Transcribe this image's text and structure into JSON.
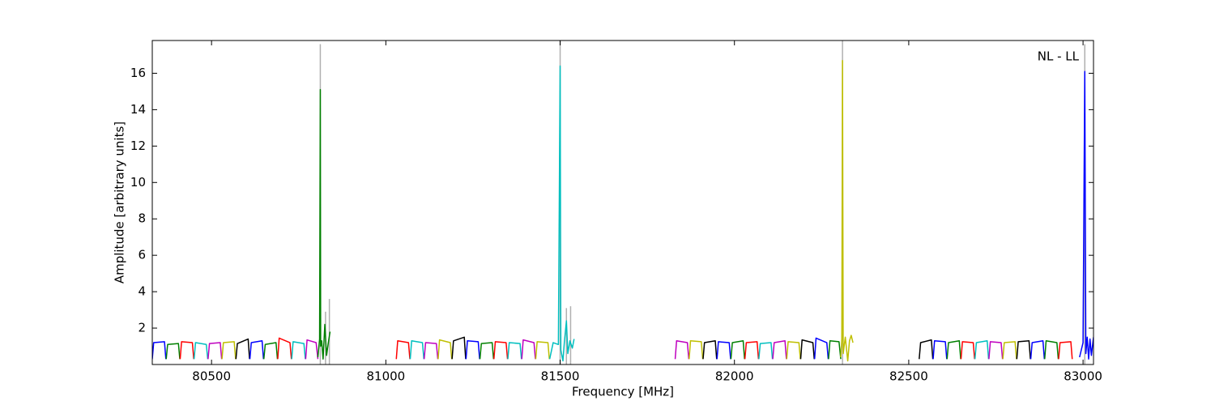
{
  "chart_data": {
    "type": "line",
    "xlabel": "Frequency [MHz]",
    "ylabel": "Amplitude [arbitrary units]",
    "annotation": "NL - LL",
    "xlim": [
      80330,
      83030
    ],
    "ylim": [
      0,
      17.8
    ],
    "xticks": [
      80500,
      81000,
      81500,
      82000,
      82500,
      83000
    ],
    "yticks": [
      2,
      4,
      6,
      8,
      10,
      12,
      14,
      16
    ],
    "series": [
      {
        "color": "#b0b0b0",
        "x": [
          80812,
          80812,
          80812,
          80827,
          80827,
          80827,
          80838,
          80838
        ],
        "values": [
          0,
          17.6,
          null,
          0,
          2.9,
          null,
          0,
          3.6
        ]
      },
      {
        "color": "#b0b0b0",
        "x": [
          81500,
          81500,
          81500,
          81518,
          81518,
          81518,
          81530,
          81530
        ],
        "values": [
          0,
          17.8,
          null,
          0,
          3.1,
          null,
          0,
          3.2
        ]
      },
      {
        "color": "#b0b0b0",
        "x": [
          82310,
          82310
        ],
        "values": [
          0,
          17.8
        ]
      },
      {
        "color": "#b0b0b0",
        "x": [
          83005,
          83005
        ],
        "values": [
          0,
          17.6
        ]
      },
      {
        "color": "#0000ff",
        "x": [
          80330,
          80334,
          80365,
          80369
        ],
        "values": [
          0.3,
          1.2,
          1.25,
          0.3
        ]
      },
      {
        "color": "#008000",
        "x": [
          80370,
          80374,
          80405,
          80409
        ],
        "values": [
          0.3,
          1.1,
          1.15,
          0.3
        ]
      },
      {
        "color": "#ff0000",
        "x": [
          80410,
          80414,
          80445,
          80449
        ],
        "values": [
          0.3,
          1.25,
          1.2,
          0.3
        ]
      },
      {
        "color": "#00bfbf",
        "x": [
          80450,
          80454,
          80485,
          80489
        ],
        "values": [
          0.3,
          1.2,
          1.1,
          0.3
        ]
      },
      {
        "color": "#bf00bf",
        "x": [
          80490,
          80494,
          80525,
          80529
        ],
        "values": [
          0.3,
          1.15,
          1.2,
          0.3
        ]
      },
      {
        "color": "#bfbf00",
        "x": [
          80530,
          80534,
          80565,
          80569
        ],
        "values": [
          0.3,
          1.2,
          1.25,
          0.3
        ]
      },
      {
        "color": "#000000",
        "x": [
          80570,
          80574,
          80605,
          80609
        ],
        "values": [
          0.3,
          1.15,
          1.4,
          0.3
        ]
      },
      {
        "color": "#0000ff",
        "x": [
          80610,
          80614,
          80645,
          80649
        ],
        "values": [
          0.3,
          1.2,
          1.3,
          0.3
        ]
      },
      {
        "color": "#008000",
        "x": [
          80650,
          80654,
          80685,
          80689
        ],
        "values": [
          0.3,
          1.1,
          1.2,
          0.3
        ]
      },
      {
        "color": "#ff0000",
        "x": [
          80690,
          80694,
          80725,
          80729
        ],
        "values": [
          0.3,
          1.45,
          1.2,
          0.3
        ]
      },
      {
        "color": "#00bfbf",
        "x": [
          80730,
          80734,
          80765,
          80769
        ],
        "values": [
          0.3,
          1.25,
          1.15,
          0.3
        ]
      },
      {
        "color": "#bf00bf",
        "x": [
          80770,
          80774,
          80800,
          80805
        ],
        "values": [
          0.3,
          1.35,
          1.2,
          0.3
        ]
      },
      {
        "color": "#008000",
        "x": [
          80805,
          80810,
          80812,
          80813,
          80816,
          80820,
          80825,
          80830,
          80835,
          80840
        ],
        "values": [
          0.4,
          1.4,
          15.1,
          1.0,
          1.3,
          0.3,
          2.2,
          0.5,
          1.2,
          1.8
        ]
      },
      {
        "color": "#ff0000",
        "x": [
          81030,
          81034,
          81065,
          81069
        ],
        "values": [
          0.3,
          1.3,
          1.2,
          0.3
        ]
      },
      {
        "color": "#00bfbf",
        "x": [
          81070,
          81074,
          81105,
          81109
        ],
        "values": [
          0.3,
          1.3,
          1.2,
          0.3
        ]
      },
      {
        "color": "#bf00bf",
        "x": [
          81110,
          81114,
          81145,
          81149
        ],
        "values": [
          0.3,
          1.2,
          1.15,
          0.3
        ]
      },
      {
        "color": "#bfbf00",
        "x": [
          81150,
          81154,
          81185,
          81189
        ],
        "values": [
          0.3,
          1.35,
          1.2,
          0.3
        ]
      },
      {
        "color": "#000000",
        "x": [
          81190,
          81194,
          81225,
          81229
        ],
        "values": [
          0.3,
          1.3,
          1.5,
          0.3
        ]
      },
      {
        "color": "#0000ff",
        "x": [
          81230,
          81234,
          81265,
          81269
        ],
        "values": [
          0.3,
          1.3,
          1.25,
          0.3
        ]
      },
      {
        "color": "#008000",
        "x": [
          81270,
          81274,
          81305,
          81309
        ],
        "values": [
          0.3,
          1.15,
          1.2,
          0.3
        ]
      },
      {
        "color": "#ff0000",
        "x": [
          81310,
          81314,
          81345,
          81349
        ],
        "values": [
          0.3,
          1.25,
          1.2,
          0.3
        ]
      },
      {
        "color": "#00bfbf",
        "x": [
          81350,
          81354,
          81385,
          81389
        ],
        "values": [
          0.3,
          1.2,
          1.15,
          0.3
        ]
      },
      {
        "color": "#bf00bf",
        "x": [
          81390,
          81394,
          81425,
          81429
        ],
        "values": [
          0.3,
          1.35,
          1.2,
          0.3
        ]
      },
      {
        "color": "#bfbf00",
        "x": [
          81430,
          81434,
          81465,
          81469
        ],
        "values": [
          0.3,
          1.25,
          1.2,
          0.3
        ]
      },
      {
        "color": "#00bfbf",
        "x": [
          81470,
          81480,
          81495,
          81500,
          81502,
          81508,
          81512,
          81518,
          81522,
          81528,
          81535,
          81540
        ],
        "values": [
          0.3,
          1.2,
          1.1,
          16.4,
          0.8,
          0.2,
          1.2,
          2.4,
          0.6,
          1.3,
          0.9,
          1.4
        ]
      },
      {
        "color": "#bf00bf",
        "x": [
          81830,
          81834,
          81865,
          81869
        ],
        "values": [
          0.3,
          1.3,
          1.2,
          0.3
        ]
      },
      {
        "color": "#bfbf00",
        "x": [
          81870,
          81874,
          81905,
          81909
        ],
        "values": [
          0.3,
          1.3,
          1.25,
          0.3
        ]
      },
      {
        "color": "#000000",
        "x": [
          81910,
          81914,
          81945,
          81949
        ],
        "values": [
          0.3,
          1.2,
          1.3,
          0.3
        ]
      },
      {
        "color": "#0000ff",
        "x": [
          81950,
          81954,
          81985,
          81989
        ],
        "values": [
          0.3,
          1.25,
          1.2,
          0.3
        ]
      },
      {
        "color": "#008000",
        "x": [
          81990,
          81994,
          82025,
          82029
        ],
        "values": [
          0.3,
          1.2,
          1.3,
          0.3
        ]
      },
      {
        "color": "#ff0000",
        "x": [
          82030,
          82034,
          82065,
          82069
        ],
        "values": [
          0.3,
          1.2,
          1.25,
          0.3
        ]
      },
      {
        "color": "#00bfbf",
        "x": [
          82070,
          82074,
          82105,
          82109
        ],
        "values": [
          0.3,
          1.15,
          1.2,
          0.3
        ]
      },
      {
        "color": "#bf00bf",
        "x": [
          82110,
          82114,
          82145,
          82149
        ],
        "values": [
          0.3,
          1.2,
          1.3,
          0.3
        ]
      },
      {
        "color": "#bfbf00",
        "x": [
          82150,
          82154,
          82185,
          82189
        ],
        "values": [
          0.3,
          1.25,
          1.2,
          0.3
        ]
      },
      {
        "color": "#000000",
        "x": [
          82190,
          82194,
          82225,
          82229
        ],
        "values": [
          0.3,
          1.35,
          1.2,
          0.3
        ]
      },
      {
        "color": "#0000ff",
        "x": [
          82230,
          82234,
          82265,
          82269
        ],
        "values": [
          0.3,
          1.45,
          1.2,
          0.3
        ]
      },
      {
        "color": "#008000",
        "x": [
          82270,
          82274,
          82300,
          82305
        ],
        "values": [
          0.3,
          1.3,
          1.25,
          0.3
        ]
      },
      {
        "color": "#bfbf00",
        "x": [
          82305,
          82308,
          82310,
          82312,
          82318,
          82325,
          82330,
          82335,
          82340
        ],
        "values": [
          0.4,
          1.4,
          16.7,
          0.6,
          1.5,
          0.2,
          1.3,
          1.6,
          1.2
        ]
      },
      {
        "color": "#000000",
        "x": [
          82530,
          82534,
          82565,
          82569
        ],
        "values": [
          0.3,
          1.2,
          1.35,
          0.3
        ]
      },
      {
        "color": "#0000ff",
        "x": [
          82570,
          82574,
          82605,
          82609
        ],
        "values": [
          0.3,
          1.3,
          1.25,
          0.3
        ]
      },
      {
        "color": "#008000",
        "x": [
          82610,
          82614,
          82645,
          82649
        ],
        "values": [
          0.3,
          1.2,
          1.3,
          0.3
        ]
      },
      {
        "color": "#ff0000",
        "x": [
          82650,
          82654,
          82685,
          82689
        ],
        "values": [
          0.3,
          1.25,
          1.2,
          0.3
        ]
      },
      {
        "color": "#00bfbf",
        "x": [
          82690,
          82694,
          82725,
          82729
        ],
        "values": [
          0.3,
          1.2,
          1.3,
          0.3
        ]
      },
      {
        "color": "#bf00bf",
        "x": [
          82730,
          82734,
          82765,
          82769
        ],
        "values": [
          0.3,
          1.25,
          1.2,
          0.3
        ]
      },
      {
        "color": "#bfbf00",
        "x": [
          82770,
          82774,
          82805,
          82809
        ],
        "values": [
          0.3,
          1.2,
          1.25,
          0.3
        ]
      },
      {
        "color": "#000000",
        "x": [
          82810,
          82814,
          82845,
          82849
        ],
        "values": [
          0.3,
          1.25,
          1.3,
          0.3
        ]
      },
      {
        "color": "#0000ff",
        "x": [
          82850,
          82854,
          82885,
          82889
        ],
        "values": [
          0.3,
          1.2,
          1.3,
          0.3
        ]
      },
      {
        "color": "#008000",
        "x": [
          82890,
          82894,
          82925,
          82929
        ],
        "values": [
          0.3,
          1.3,
          1.2,
          0.3
        ]
      },
      {
        "color": "#ff0000",
        "x": [
          82930,
          82934,
          82965,
          82969
        ],
        "values": [
          0.3,
          1.2,
          1.25,
          0.3
        ]
      },
      {
        "color": "#0000ff",
        "x": [
          82990,
          83000,
          83005,
          83008,
          83012,
          83016,
          83020,
          83024,
          83030
        ],
        "values": [
          0.4,
          1.2,
          16.1,
          0.6,
          1.5,
          0.3,
          1.4,
          0.5,
          1.5
        ]
      }
    ]
  }
}
